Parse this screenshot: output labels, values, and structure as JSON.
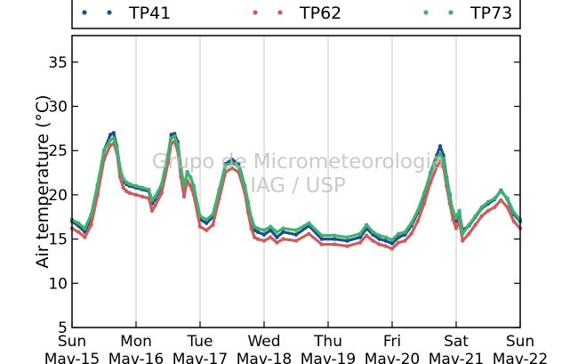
{
  "chart_data": {
    "type": "scatter",
    "title": "",
    "xlabel": "",
    "ylabel": "Air temperature (°C)",
    "xlim": [
      0,
      7
    ],
    "ylim": [
      5,
      38
    ],
    "yticks": [
      5,
      10,
      15,
      20,
      25,
      30,
      35
    ],
    "xticks": [
      {
        "x": 0,
        "day": "Sun",
        "date": "Mav-15"
      },
      {
        "x": 1,
        "day": "Mon",
        "date": "Mav-16"
      },
      {
        "x": 2,
        "day": "Tue",
        "date": "Mav-17"
      },
      {
        "x": 3,
        "day": "Wed",
        "date": "Mav-18"
      },
      {
        "x": 4,
        "day": "Thu",
        "date": "Mav-19"
      },
      {
        "x": 5,
        "day": "Fri",
        "date": "Mav-20"
      },
      {
        "x": 6,
        "day": "Sat",
        "date": "Mav-21"
      },
      {
        "x": 7,
        "day": "Sun",
        "date": "Mav-22"
      }
    ],
    "grid": "vertical",
    "legend_position": "top",
    "series": [
      {
        "name": "TP41",
        "color": "#1f4e8c",
        "x": [
          0,
          0.1,
          0.2,
          0.3,
          0.4,
          0.5,
          0.6,
          0.65,
          0.7,
          0.75,
          0.8,
          0.85,
          0.9,
          1.0,
          1.1,
          1.2,
          1.25,
          1.3,
          1.4,
          1.5,
          1.55,
          1.6,
          1.65,
          1.7,
          1.75,
          1.8,
          1.85,
          1.9,
          2.0,
          2.1,
          2.2,
          2.3,
          2.4,
          2.5,
          2.6,
          2.7,
          2.75,
          2.8,
          2.85,
          2.9,
          3.0,
          3.1,
          3.2,
          3.3,
          3.5,
          3.7,
          3.9,
          4.1,
          4.3,
          4.5,
          4.6,
          4.7,
          4.8,
          4.9,
          5.0,
          5.1,
          5.2,
          5.3,
          5.4,
          5.5,
          5.6,
          5.7,
          5.75,
          5.8,
          5.85,
          5.9,
          5.95,
          6.0,
          6.05,
          6.1,
          6.2,
          6.3,
          6.4,
          6.5,
          6.6,
          6.7,
          6.8,
          6.9,
          7.0
        ],
        "y": [
          17.0,
          16.5,
          15.8,
          17.5,
          21.0,
          25.0,
          26.8,
          27.0,
          25.5,
          23.0,
          21.5,
          21.2,
          21.0,
          20.8,
          20.6,
          20.4,
          19.0,
          19.5,
          21.0,
          24.5,
          26.8,
          26.9,
          26.0,
          23.0,
          21.0,
          22.5,
          22.0,
          21.0,
          17.2,
          16.8,
          17.5,
          20.5,
          23.5,
          24.0,
          23.5,
          21.0,
          19.0,
          17.0,
          16.0,
          15.8,
          15.5,
          16.0,
          15.2,
          15.8,
          15.5,
          16.5,
          15.0,
          15.0,
          14.8,
          15.2,
          16.2,
          15.5,
          15.0,
          14.8,
          14.5,
          15.2,
          15.5,
          16.5,
          18.0,
          20.0,
          22.5,
          24.5,
          25.5,
          24.5,
          22.0,
          20.0,
          18.0,
          17.0,
          18.0,
          16.0,
          16.5,
          17.5,
          18.5,
          19.0,
          19.5,
          20.5,
          19.5,
          17.8,
          17.0
        ]
      },
      {
        "name": "TP62",
        "color": "#cd5c5c",
        "x": [
          0,
          0.1,
          0.2,
          0.3,
          0.4,
          0.5,
          0.6,
          0.65,
          0.7,
          0.75,
          0.8,
          0.85,
          0.9,
          1.0,
          1.1,
          1.2,
          1.25,
          1.3,
          1.4,
          1.5,
          1.55,
          1.6,
          1.65,
          1.7,
          1.75,
          1.8,
          1.85,
          1.9,
          2.0,
          2.1,
          2.2,
          2.3,
          2.4,
          2.5,
          2.6,
          2.7,
          2.75,
          2.8,
          2.85,
          2.9,
          3.0,
          3.1,
          3.2,
          3.3,
          3.5,
          3.7,
          3.9,
          4.1,
          4.3,
          4.5,
          4.6,
          4.7,
          4.8,
          4.9,
          5.0,
          5.1,
          5.2,
          5.3,
          5.4,
          5.5,
          5.6,
          5.7,
          5.75,
          5.8,
          5.85,
          5.9,
          5.95,
          6.0,
          6.05,
          6.1,
          6.2,
          6.3,
          6.4,
          6.5,
          6.6,
          6.7,
          6.8,
          6.9,
          7.0
        ],
        "y": [
          16.2,
          15.8,
          15.2,
          16.6,
          20.0,
          24.0,
          25.6,
          25.8,
          24.8,
          22.0,
          20.8,
          20.4,
          20.2,
          20.0,
          19.8,
          19.6,
          18.2,
          18.8,
          20.2,
          23.6,
          25.8,
          26.0,
          25.0,
          22.0,
          19.8,
          21.6,
          21.0,
          20.0,
          16.4,
          16.0,
          16.6,
          19.6,
          22.6,
          23.0,
          22.6,
          20.2,
          18.0,
          16.2,
          15.2,
          15.0,
          14.8,
          15.2,
          14.6,
          15.0,
          14.8,
          15.6,
          14.4,
          14.4,
          14.2,
          14.6,
          15.4,
          14.8,
          14.4,
          14.2,
          13.9,
          14.6,
          14.8,
          15.6,
          17.0,
          19.0,
          21.4,
          23.2,
          23.8,
          23.2,
          21.0,
          19.0,
          17.2,
          16.2,
          17.0,
          14.8,
          15.6,
          16.6,
          17.6,
          18.2,
          18.6,
          19.4,
          18.6,
          17.0,
          16.2
        ]
      },
      {
        "name": "TP73",
        "color": "#3cb371",
        "x": [
          0,
          0.1,
          0.2,
          0.3,
          0.4,
          0.5,
          0.6,
          0.65,
          0.7,
          0.75,
          0.8,
          0.85,
          0.9,
          1.0,
          1.1,
          1.2,
          1.25,
          1.3,
          1.4,
          1.5,
          1.55,
          1.6,
          1.65,
          1.7,
          1.75,
          1.8,
          1.85,
          1.9,
          2.0,
          2.1,
          2.2,
          2.3,
          2.4,
          2.5,
          2.6,
          2.7,
          2.75,
          2.8,
          2.85,
          2.9,
          3.0,
          3.1,
          3.2,
          3.3,
          3.5,
          3.7,
          3.9,
          4.1,
          4.3,
          4.5,
          4.6,
          4.7,
          4.8,
          4.9,
          5.0,
          5.1,
          5.2,
          5.3,
          5.4,
          5.5,
          5.6,
          5.7,
          5.75,
          5.8,
          5.85,
          5.9,
          5.95,
          6.0,
          6.05,
          6.1,
          6.2,
          6.3,
          6.4,
          6.5,
          6.6,
          6.7,
          6.8,
          6.9,
          7.0
        ],
        "y": [
          17.2,
          16.8,
          16.2,
          17.8,
          21.2,
          25.0,
          26.2,
          26.4,
          25.4,
          23.0,
          21.8,
          21.4,
          21.2,
          21.0,
          20.8,
          20.6,
          19.4,
          19.8,
          21.2,
          24.6,
          26.4,
          26.6,
          25.6,
          23.0,
          21.0,
          22.6,
          22.0,
          21.0,
          17.6,
          17.2,
          17.8,
          20.6,
          23.4,
          23.6,
          23.2,
          21.0,
          19.2,
          17.4,
          16.4,
          16.2,
          16.0,
          16.4,
          15.8,
          16.2,
          16.0,
          16.8,
          15.4,
          15.4,
          15.2,
          15.6,
          16.6,
          15.8,
          15.4,
          15.2,
          14.9,
          15.6,
          15.8,
          16.8,
          18.2,
          20.2,
          22.4,
          24.2,
          24.6,
          24.0,
          21.8,
          19.8,
          18.2,
          17.4,
          18.2,
          15.6,
          16.6,
          17.6,
          18.6,
          19.2,
          19.6,
          20.4,
          19.6,
          18.0,
          17.2
        ]
      }
    ],
    "watermark": [
      "Grupo de Micrometeorologia",
      "IAG / USP"
    ]
  }
}
